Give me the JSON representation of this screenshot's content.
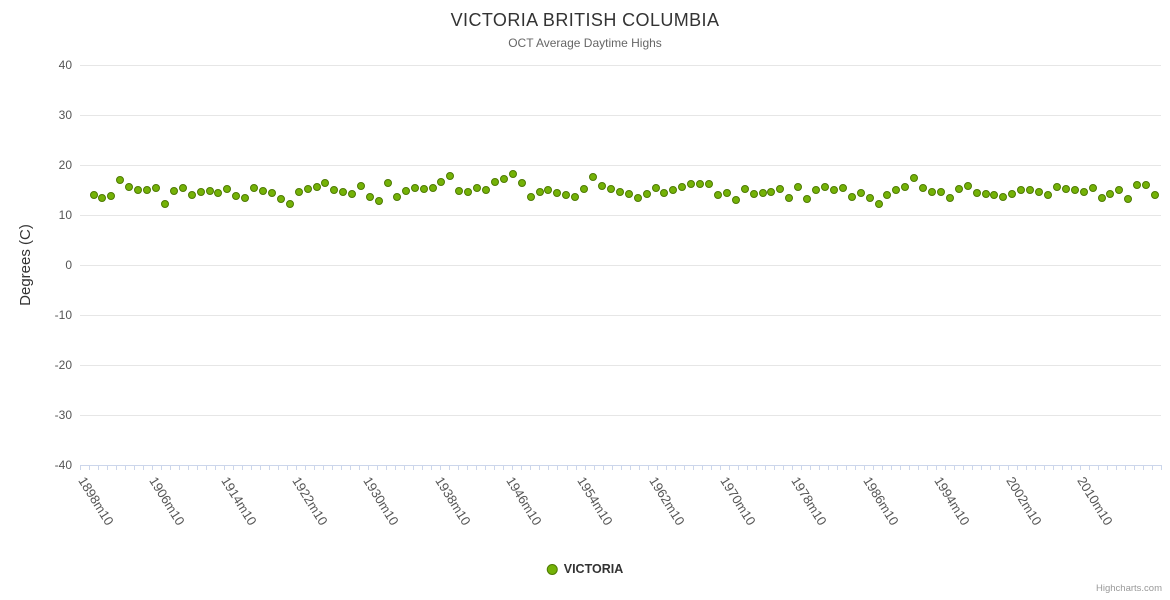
{
  "chart": {
    "title": "VICTORIA BRITISH COLUMBIA",
    "subtitle": "OCT Average Daytime Highs",
    "y_axis_title": "Degrees (C)",
    "legend_label": "VICTORIA",
    "credits_label": "Highcharts.com"
  },
  "colors": {
    "point_fill": "#74b207",
    "point_border": "#4d7a02",
    "grid": "#e6e6e6",
    "axis_line": "#ccd6eb",
    "title_text": "#333333",
    "subtitle_text": "#666666",
    "axis_label_text": "#555555",
    "credits_text": "#999999"
  },
  "chart_data": {
    "type": "scatter",
    "title": "VICTORIA BRITISH COLUMBIA",
    "subtitle": "OCT Average Daytime Highs",
    "xlabel": "",
    "ylabel": "Degrees (C)",
    "ylim": [
      -40,
      40
    ],
    "y_tick_step": 10,
    "y_tick_labels": [
      "40",
      "30",
      "20",
      "10",
      "0",
      "-10",
      "-20",
      "-30",
      "-40"
    ],
    "x_tick_labels": [
      "1898m10",
      "1906m10",
      "1914m10",
      "1922m10",
      "1930m10",
      "1938m10",
      "1946m10",
      "1954m10",
      "1962m10",
      "1970m10",
      "1978m10",
      "1986m10",
      "1994m10",
      "2002m10",
      "2010m10"
    ],
    "x_start": "1896m10",
    "x_label_format": "YYYYm10",
    "grid": "horizontal-only",
    "legend_position": "bottom-center",
    "series": [
      {
        "name": "VICTORIA",
        "marker": "circle",
        "color": "#74b207",
        "values": [
          14.0,
          13.4,
          13.7,
          17.0,
          15.5,
          15.0,
          15.0,
          15.3,
          12.1,
          14.7,
          15.3,
          14.0,
          14.5,
          14.7,
          14.3,
          15.2,
          13.7,
          13.3,
          15.4,
          14.7,
          14.4,
          13.1,
          12.1,
          14.5,
          15.1,
          15.5,
          16.4,
          14.9,
          14.5,
          14.1,
          15.7,
          13.5,
          12.7,
          16.4,
          13.5,
          14.7,
          15.3,
          15.1,
          15.4,
          16.5,
          17.7,
          14.7,
          14.5,
          15.3,
          14.9,
          16.6,
          17.1,
          18.1,
          16.4,
          13.5,
          14.6,
          14.9,
          14.4,
          13.9,
          13.5,
          15.1,
          17.5,
          15.7,
          15.1,
          14.6,
          14.2,
          13.3,
          14.2,
          15.3,
          14.4,
          14.9,
          15.5,
          16.1,
          16.2,
          16.2,
          13.9,
          14.4,
          12.9,
          15.1,
          14.2,
          14.4,
          14.6,
          15.1,
          13.3,
          15.5,
          13.1,
          14.9,
          15.5,
          14.9,
          15.4,
          13.5,
          14.4,
          13.3,
          12.2,
          13.9,
          14.9,
          15.5,
          17.3,
          15.3,
          14.6,
          14.6,
          13.3,
          15.1,
          15.7,
          14.4,
          14.2,
          13.9,
          13.5,
          14.2,
          14.9,
          14.9,
          14.6,
          13.9,
          15.5,
          15.1,
          14.9,
          14.6,
          15.3,
          13.3,
          14.1,
          14.9,
          13.1,
          16.0,
          16.0,
          14.0
        ]
      }
    ]
  }
}
